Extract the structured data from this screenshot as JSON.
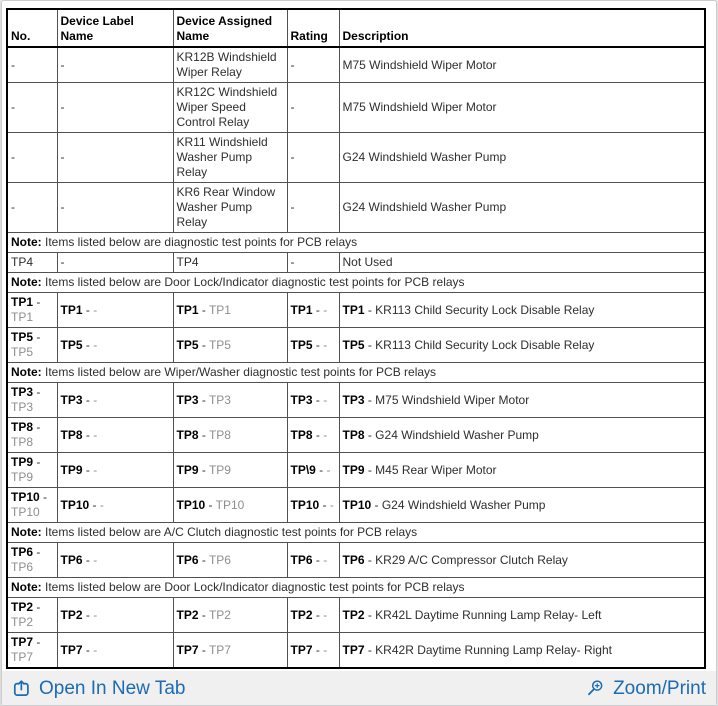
{
  "table": {
    "note_label": "Note:",
    "headers": [
      "No.",
      "Device Label Name",
      "Device Assigned Name",
      "Rating",
      "Description"
    ],
    "rows": [
      {
        "plain": [
          "-",
          "-",
          "KR12B Windshield Wiper Relay",
          "-",
          "M75 Windshield Wiper Motor"
        ]
      },
      {
        "plain": [
          "-",
          "-",
          "KR12C Windshield Wiper Speed Control Relay",
          "-",
          "M75 Windshield Wiper Motor"
        ]
      },
      {
        "plain": [
          "-",
          "-",
          "KR11 Windshield Washer Pump Relay",
          "-",
          "G24 Windshield Washer Pump"
        ]
      },
      {
        "plain": [
          "-",
          "-",
          "KR6 Rear Window Washer Pump Relay",
          "-",
          "G24 Windshield Washer Pump"
        ]
      },
      {
        "note": "Items listed below are diagnostic test points for PCB relays"
      },
      {
        "plain": [
          "TP4",
          "-",
          "TP4",
          "-",
          "Not Used"
        ]
      },
      {
        "note": "Items listed below are Door Lock/Indicator diagnostic test points for PCB relays"
      },
      {
        "tp": "TP1",
        "desc": "KR113 Child Security Lock Disable Relay"
      },
      {
        "tp": "TP5",
        "desc": "KR113 Child Security Lock Disable Relay"
      },
      {
        "note": "Items listed below are Wiper/Washer diagnostic test points for PCB relays"
      },
      {
        "tp": "TP3",
        "desc": "M75 Windshield Wiper Motor"
      },
      {
        "tp": "TP8",
        "desc": "G24 Windshield Washer Pump"
      },
      {
        "tp": "TP9",
        "rating_label": "TP\\9",
        "desc": "M45 Rear Wiper Motor"
      },
      {
        "tp": "TP10",
        "desc": "G24 Windshield Washer Pump"
      },
      {
        "note": "Items listed below are A/C Clutch diagnostic test points for PCB relays"
      },
      {
        "tp": "TP6",
        "desc": "KR29 A/C Compressor Clutch Relay"
      },
      {
        "note": "Items listed below are Door Lock/Indicator diagnostic test points for PCB relays"
      },
      {
        "tp": "TP2",
        "desc": "KR42L Daytime Running Lamp Relay- Left"
      },
      {
        "tp": "TP7",
        "desc": "KR42R Daytime Running Lamp Relay- Right"
      }
    ]
  },
  "footer": {
    "open_in_new_tab": "Open In New Tab",
    "zoom_print": "Zoom/Print",
    "link_color": "#1c6bb3",
    "icons": {
      "open": "open-in-new-tab-icon",
      "zoom": "magnifier-plus-icon"
    }
  }
}
